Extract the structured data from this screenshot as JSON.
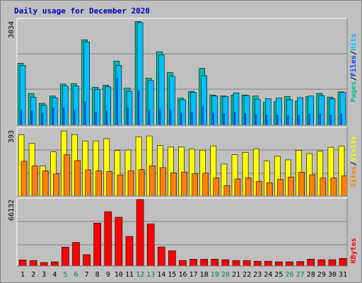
{
  "title": "Daily usage for December 2020",
  "colors": {
    "hits": "#00c0ff",
    "files": "#0040ff",
    "pages": "#00c0a0",
    "visits": "#ffff00",
    "sites": "#ff8000",
    "kbytes": "#ff0000",
    "weekend_label": "#00805c",
    "weekday_label": "#000000",
    "panel_bg": "#c0c0c0",
    "gridline": "#808080"
  },
  "chart_data": [
    {
      "type": "bar",
      "name": "hits-files-pages",
      "categories": [
        "1",
        "2",
        "3",
        "4",
        "5",
        "6",
        "7",
        "8",
        "9",
        "10",
        "11",
        "12",
        "13",
        "14",
        "15",
        "16",
        "17",
        "18",
        "19",
        "20",
        "21",
        "22",
        "23",
        "24",
        "25",
        "26",
        "27",
        "28",
        "29",
        "30",
        "31"
      ],
      "y_tick_label": "3034",
      "ylim": [
        0,
        3034
      ],
      "legend": [
        {
          "label": "Pages",
          "color": "#00c0a0"
        },
        {
          "label": "/",
          "color": "#000000"
        },
        {
          "label": "Files",
          "color": "#0040ff"
        },
        {
          "label": "/",
          "color": "#000000"
        },
        {
          "label": "Hits",
          "color": "#00c0ff"
        }
      ],
      "series": [
        {
          "name": "Hits",
          "values": [
            1725,
            810,
            575,
            795,
            1125,
            1125,
            2400,
            1035,
            1110,
            1725,
            975,
            2955,
            1290,
            2025,
            1410,
            735,
            945,
            1425,
            840,
            825,
            930,
            855,
            750,
            765,
            780,
            735,
            795,
            840,
            855,
            765,
            945
          ]
        },
        {
          "name": "Files",
          "values": [
            450,
            420,
            360,
            510,
            510,
            450,
            690,
            390,
            420,
            1365,
            510,
            1005,
            450,
            480,
            450,
            360,
            390,
            540,
            360,
            345,
            390,
            345,
            300,
            300,
            300,
            285,
            300,
            330,
            330,
            300,
            330
          ]
        },
        {
          "name": "Pages",
          "values": [
            1785,
            915,
            630,
            840,
            1185,
            1200,
            2460,
            1095,
            1155,
            1845,
            1065,
            2985,
            1350,
            2115,
            1515,
            780,
            975,
            1635,
            870,
            840,
            870,
            870,
            840,
            660,
            675,
            825,
            690,
            825,
            915,
            810,
            960
          ]
        }
      ]
    },
    {
      "type": "bar",
      "name": "visits-sites",
      "categories": [
        "1",
        "2",
        "3",
        "4",
        "5",
        "6",
        "7",
        "8",
        "9",
        "10",
        "11",
        "12",
        "13",
        "14",
        "15",
        "16",
        "17",
        "18",
        "19",
        "20",
        "21",
        "22",
        "23",
        "24",
        "25",
        "26",
        "27",
        "28",
        "29",
        "30",
        "31"
      ],
      "y_tick_label": "393",
      "ylim": [
        0,
        393
      ],
      "legend": [
        {
          "label": "Sites",
          "color": "#ff8000"
        },
        {
          "label": "/",
          "color": "#000000"
        },
        {
          "label": "Visits",
          "color": "#ffff00"
        }
      ],
      "series": [
        {
          "name": "Visits",
          "values": [
            357,
            308,
            176,
            258,
            380,
            359,
            322,
            322,
            335,
            266,
            269,
            345,
            351,
            295,
            286,
            286,
            274,
            268,
            293,
            187,
            242,
            255,
            275,
            204,
            232,
            211,
            267,
            248,
            262,
            285,
            292
          ]
        },
        {
          "name": "Sites",
          "values": [
            203,
            176,
            147,
            129,
            241,
            207,
            153,
            147,
            143,
            123,
            147,
            155,
            177,
            166,
            135,
            140,
            130,
            133,
            105,
            61,
            99,
            106,
            86,
            77,
            97,
            111,
            139,
            124,
            105,
            105,
            118
          ]
        }
      ]
    },
    {
      "type": "bar",
      "name": "kbytes",
      "categories": [
        "1",
        "2",
        "3",
        "4",
        "5",
        "6",
        "7",
        "8",
        "9",
        "10",
        "11",
        "12",
        "13",
        "14",
        "15",
        "16",
        "17",
        "18",
        "19",
        "20",
        "21",
        "22",
        "23",
        "24",
        "25",
        "26",
        "27",
        "28",
        "29",
        "30",
        "31"
      ],
      "y_tick_label": "66132",
      "ylim": [
        0,
        66132
      ],
      "legend": [
        {
          "label": "KBytes",
          "color": "#ff0000"
        }
      ],
      "series": [
        {
          "name": "KBytes",
          "values": [
            6050,
            5500,
            3500,
            4200,
            18800,
            23500,
            11300,
            42700,
            54000,
            48500,
            29500,
            66132,
            41800,
            19000,
            15200,
            5500,
            6800,
            6800,
            6800,
            6300,
            5500,
            5500,
            4800,
            4800,
            4200,
            4200,
            4500,
            6800,
            6300,
            6300,
            7600
          ]
        }
      ]
    }
  ],
  "x_axis": {
    "labels": [
      "1",
      "2",
      "3",
      "4",
      "5",
      "6",
      "7",
      "8",
      "9",
      "10",
      "11",
      "12",
      "13",
      "14",
      "15",
      "16",
      "17",
      "18",
      "19",
      "20",
      "21",
      "22",
      "23",
      "24",
      "25",
      "26",
      "27",
      "28",
      "29",
      "30",
      "31"
    ],
    "weekend": [
      false,
      false,
      false,
      false,
      true,
      true,
      false,
      false,
      false,
      false,
      false,
      true,
      true,
      false,
      false,
      false,
      false,
      false,
      true,
      true,
      false,
      false,
      false,
      false,
      false,
      true,
      true,
      false,
      false,
      false,
      false
    ]
  }
}
